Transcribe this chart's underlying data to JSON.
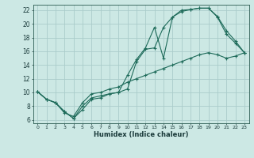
{
  "xlabel": "Humidex (Indice chaleur)",
  "bg_color": "#cce8e4",
  "grid_color": "#aaccca",
  "line_color": "#1e6b5a",
  "xlim": [
    -0.5,
    23.5
  ],
  "ylim": [
    5.5,
    22.8
  ],
  "xticks": [
    0,
    1,
    2,
    3,
    4,
    5,
    6,
    7,
    8,
    9,
    10,
    11,
    12,
    13,
    14,
    15,
    16,
    17,
    18,
    19,
    20,
    21,
    22,
    23
  ],
  "yticks": [
    6,
    8,
    10,
    12,
    14,
    16,
    18,
    20,
    22
  ],
  "line1_x": [
    0,
    1,
    2,
    3,
    4,
    5,
    6,
    7,
    8,
    9,
    10,
    11,
    12,
    13,
    14,
    15,
    16,
    17,
    18,
    19,
    20,
    21,
    22,
    23
  ],
  "line1_y": [
    10.1,
    9.0,
    8.5,
    7.2,
    6.2,
    7.5,
    9.0,
    9.2,
    9.8,
    10.0,
    12.5,
    14.8,
    16.5,
    19.5,
    15.0,
    21.0,
    21.8,
    22.1,
    22.3,
    22.3,
    21.1,
    19.0,
    17.5,
    15.8
  ],
  "line2_x": [
    0,
    1,
    2,
    3,
    4,
    5,
    6,
    7,
    8,
    9,
    10,
    11,
    12,
    13,
    14,
    15,
    16,
    17,
    18,
    19,
    20,
    21,
    22,
    23
  ],
  "line2_y": [
    10.1,
    9.0,
    8.5,
    7.2,
    6.2,
    8.0,
    9.2,
    9.5,
    9.8,
    10.0,
    10.5,
    14.5,
    16.3,
    16.5,
    19.5,
    21.0,
    22.0,
    22.1,
    22.3,
    22.3,
    21.0,
    18.5,
    17.2,
    15.8
  ],
  "line3_x": [
    0,
    1,
    2,
    3,
    4,
    5,
    6,
    7,
    8,
    9,
    10,
    11,
    12,
    13,
    14,
    15,
    16,
    17,
    18,
    19,
    20,
    21,
    22,
    23
  ],
  "line3_y": [
    10.1,
    9.0,
    8.5,
    7.0,
    6.5,
    8.5,
    9.8,
    10.0,
    10.5,
    10.8,
    11.5,
    12.0,
    12.5,
    13.0,
    13.5,
    14.0,
    14.5,
    15.0,
    15.5,
    15.8,
    15.5,
    15.0,
    15.3,
    15.8
  ]
}
